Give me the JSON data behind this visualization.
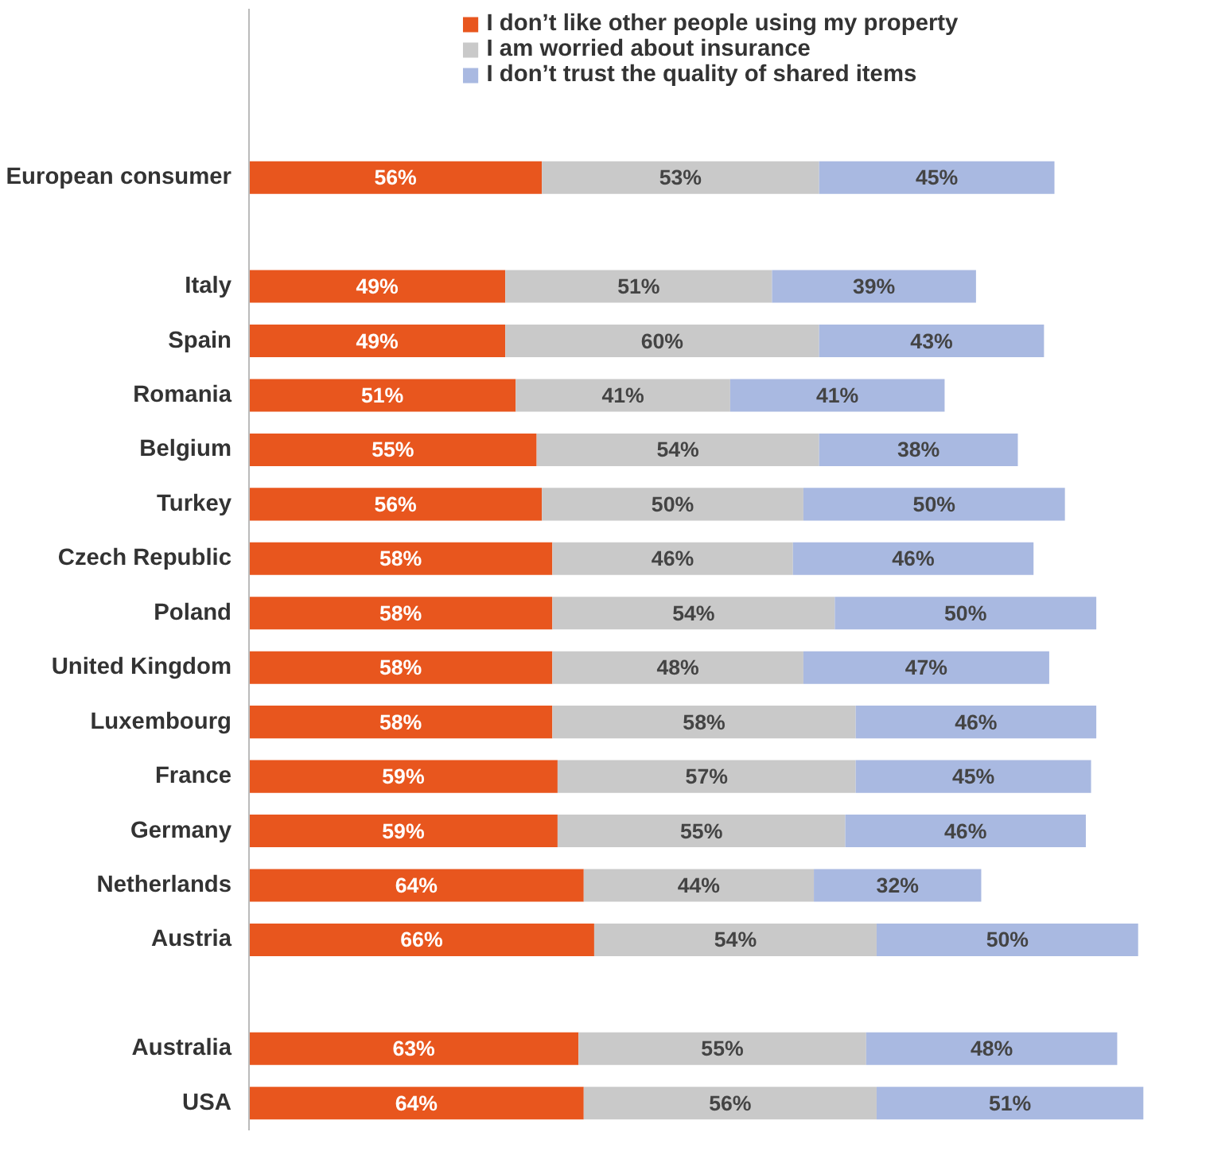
{
  "chart_data": {
    "type": "bar",
    "orientation": "horizontal",
    "stacked": true,
    "legend": "top",
    "grid": false,
    "tick_labels": "y",
    "categories": [
      "European consumer",
      null,
      "Italy",
      "Spain",
      "Romania",
      "Belgium",
      "Turkey",
      "Czech Republic",
      "Poland",
      "United Kingdom",
      "Luxembourg",
      "France",
      "Germany",
      "Netherlands",
      "Austria",
      null,
      "Australia",
      "USA"
    ],
    "series": [
      {
        "name": "I don’t like other people using my property",
        "color": "#e8561e",
        "values": [
          56,
          null,
          49,
          49,
          51,
          55,
          56,
          58,
          58,
          58,
          58,
          59,
          59,
          64,
          66,
          null,
          63,
          64
        ],
        "value_labels": [
          "56%",
          null,
          "49%",
          "49%",
          "51%",
          "55%",
          "56%",
          "58%",
          "58%",
          "58%",
          "58%",
          "59%",
          "59%",
          "64%",
          "66%",
          null,
          "63%",
          "64%"
        ]
      },
      {
        "name": "I am worried about insurance",
        "color": "#c9c9c9",
        "values": [
          53,
          null,
          51,
          60,
          41,
          54,
          50,
          46,
          54,
          48,
          58,
          57,
          55,
          44,
          54,
          null,
          55,
          56
        ],
        "value_labels": [
          "53%",
          null,
          "51%",
          "60%",
          "41%",
          "54%",
          "50%",
          "46%",
          "54%",
          "48%",
          "58%",
          "57%",
          "55%",
          "44%",
          "54%",
          null,
          "55%",
          "56%"
        ]
      },
      {
        "name": "I don’t trust the quality of shared items",
        "color": "#a9b9e1",
        "values": [
          45,
          null,
          39,
          43,
          41,
          38,
          50,
          46,
          50,
          47,
          46,
          45,
          46,
          32,
          50,
          null,
          48,
          51
        ],
        "value_labels": [
          "45%",
          null,
          "39%",
          "43%",
          "41%",
          "38%",
          "50%",
          "46%",
          "50%",
          "47%",
          "46%",
          "45%",
          "46%",
          "32%",
          "50%",
          null,
          "48%",
          "51%"
        ]
      }
    ]
  }
}
